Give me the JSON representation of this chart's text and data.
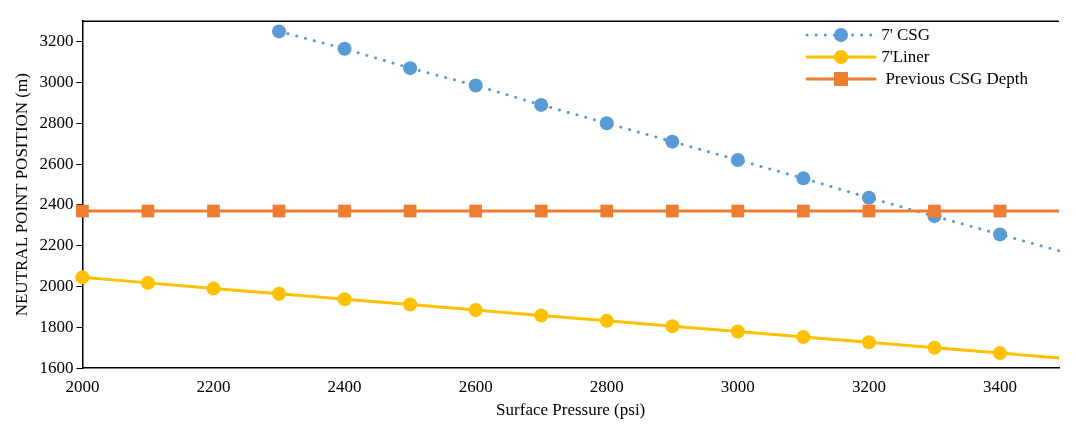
{
  "chart_data": {
    "type": "line",
    "xlabel": "Surface Pressure (psi)",
    "ylabel": "NEUTRAL POINT POSITION (m)",
    "xlim": [
      2000,
      3490
    ],
    "xticks": [
      2000,
      2200,
      2400,
      2600,
      2800,
      3000,
      3200,
      3400
    ],
    "ylim": [
      1600,
      3300
    ],
    "yticks": [
      1600,
      1800,
      2000,
      2200,
      2400,
      2600,
      2800,
      3000,
      3200
    ],
    "grid": false,
    "legend": "top right",
    "series": [
      {
        "name": "7' CSG",
        "color": "#5b9bd5",
        "line_style": "dotted",
        "marker": "circle",
        "x": [
          2300,
          2400,
          2500,
          2600,
          2700,
          2800,
          2900,
          3000,
          3100,
          3200,
          3300,
          3400,
          3490
        ],
        "values": [
          3250,
          3165,
          3070,
          2985,
          2890,
          2800,
          2710,
          2620,
          2530,
          2435,
          2345,
          2255,
          2175
        ]
      },
      {
        "name": "7'Liner",
        "color": "#ffc000",
        "line_style": "solid",
        "marker": "circle",
        "x": [
          2000,
          2100,
          2200,
          2300,
          2400,
          2500,
          2600,
          2700,
          2800,
          2900,
          3000,
          3100,
          3200,
          3300,
          3400,
          3490
        ],
        "values": [
          2045,
          2018,
          1990,
          1965,
          1938,
          1912,
          1885,
          1858,
          1832,
          1806,
          1780,
          1753,
          1727,
          1700,
          1674,
          1650
        ]
      },
      {
        "name": " Previous CSG Depth",
        "color": "#ed7d31",
        "line_style": "solid",
        "marker": "square",
        "x": [
          2000,
          2100,
          2200,
          2300,
          2400,
          2500,
          2600,
          2700,
          2800,
          2900,
          3000,
          3100,
          3200,
          3300,
          3400,
          3490
        ],
        "values": [
          2370,
          2370,
          2370,
          2370,
          2370,
          2370,
          2370,
          2370,
          2370,
          2370,
          2370,
          2370,
          2370,
          2370,
          2370,
          2370
        ]
      }
    ]
  }
}
